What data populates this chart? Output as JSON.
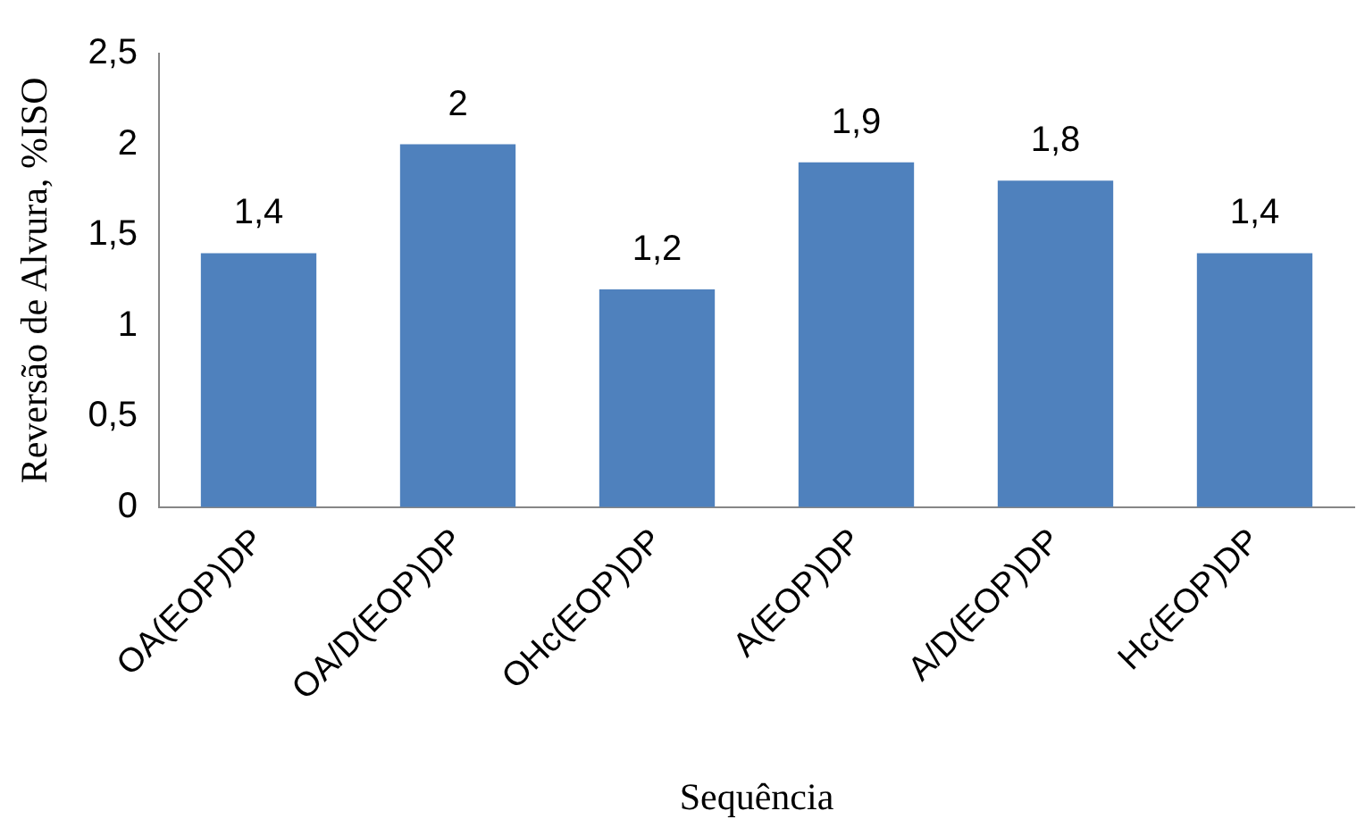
{
  "chart_data": {
    "type": "bar",
    "xlabel": "Sequência",
    "ylabel": "Reversão de Alvura, %ISO",
    "categories": [
      "OA(EOP)DP",
      "OA/D(EOP)DP",
      "OHc(EOP)DP",
      "A(EOP)DP",
      "A/D(EOP)DP",
      "Hc(EOP)DP"
    ],
    "values": [
      1.4,
      2,
      1.2,
      1.9,
      1.8,
      1.4
    ],
    "value_labels": [
      "1,4",
      "2",
      "1,2",
      "1,9",
      "1,8",
      "1,4"
    ],
    "color": "#4f81bd",
    "ylim": [
      0,
      2.5
    ],
    "yticks": [
      0,
      {
        "value": 0.5,
        "label": "0,5"
      },
      1,
      {
        "value": 1.5,
        "label": "1,5"
      },
      2,
      {
        "value": 2.5,
        "label": "2,5"
      }
    ],
    "grid": false,
    "legend": false
  }
}
